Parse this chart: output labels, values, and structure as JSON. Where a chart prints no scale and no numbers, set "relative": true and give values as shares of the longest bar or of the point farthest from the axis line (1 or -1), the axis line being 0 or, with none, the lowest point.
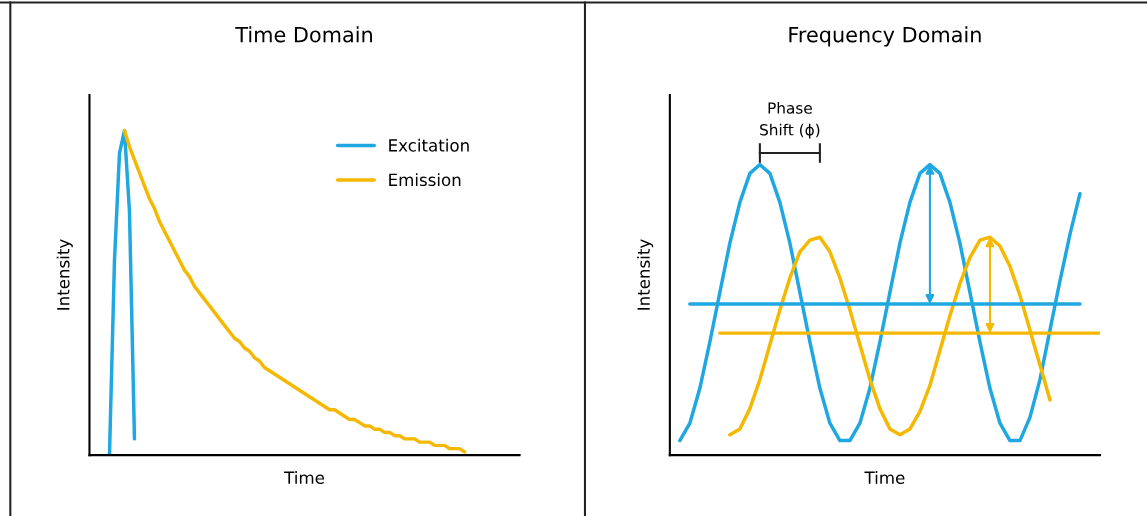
{
  "chart_data": [
    {
      "type": "line",
      "title": "Time Domain",
      "xlabel": "Time",
      "ylabel": "Intensity",
      "relative": true,
      "legend": "top right",
      "categories": [
        null,
        null,
        null,
        null,
        null,
        null,
        null,
        null,
        null,
        null,
        null,
        null,
        null,
        null,
        null,
        null,
        null,
        null,
        null,
        null,
        null,
        null,
        null,
        null,
        null,
        null,
        null,
        null,
        null,
        null,
        null,
        null,
        null,
        null,
        null,
        null,
        null,
        null,
        null,
        null,
        null,
        null,
        null,
        null,
        null,
        null,
        null,
        null,
        null,
        null,
        null,
        null,
        null,
        null,
        null,
        null,
        null,
        null,
        null,
        null,
        null,
        null,
        null,
        null,
        null,
        null,
        null,
        null,
        null,
        null,
        null,
        null,
        null,
        null,
        null,
        null,
        null,
        null,
        null,
        null,
        null,
        null,
        null,
        null,
        null,
        null,
        null
      ],
      "series": [
        {
          "name": "Excitation",
          "color": "#1ea7e1",
          "values": [
            null,
            null,
            null,
            null,
            0,
            0.6,
            0.93,
            1,
            0.75,
            0.05,
            null,
            null,
            null,
            null,
            null,
            null,
            null,
            null,
            null,
            null,
            null,
            null,
            null,
            null,
            null,
            null,
            null,
            null,
            null,
            null,
            null,
            null,
            null,
            null,
            null,
            null,
            null,
            null,
            null,
            null,
            null,
            null,
            null,
            null,
            null,
            null,
            null,
            null,
            null,
            null,
            null,
            null,
            null,
            null,
            null,
            null,
            null,
            null,
            null,
            null,
            null,
            null,
            null,
            null,
            null,
            null,
            null,
            null,
            null,
            null,
            null,
            null,
            null,
            null,
            null,
            null,
            null,
            null,
            null,
            null,
            null,
            null,
            null,
            null,
            null,
            null,
            null
          ]
        },
        {
          "name": "Emission",
          "color": "#f5b800",
          "values": [
            null,
            null,
            null,
            null,
            null,
            null,
            null,
            1.0,
            0.95,
            0.91,
            0.87,
            0.83,
            0.79,
            0.76,
            0.72,
            0.69,
            0.66,
            0.63,
            0.6,
            0.57,
            0.55,
            0.52,
            0.5,
            0.48,
            0.46,
            0.44,
            0.42,
            0.4,
            0.38,
            0.36,
            0.35,
            0.33,
            0.32,
            0.3,
            0.29,
            0.27,
            0.26,
            0.25,
            0.24,
            0.23,
            0.22,
            0.21,
            0.2,
            0.19,
            0.18,
            0.17,
            0.16,
            0.15,
            0.14,
            0.14,
            0.13,
            0.12,
            0.11,
            0.11,
            0.1,
            0.09,
            0.09,
            0.08,
            0.08,
            0.07,
            0.07,
            0.06,
            0.06,
            0.05,
            0.05,
            0.05,
            0.04,
            0.04,
            0.04,
            0.03,
            0.03,
            0.03,
            0.02,
            0.02,
            0.02,
            0.01,
            null,
            null,
            null,
            null,
            null,
            null,
            null,
            null,
            null,
            null,
            null
          ]
        }
      ]
    },
    {
      "type": "line",
      "title": "Frequency Domain",
      "xlabel": "Time",
      "ylabel": "Intensity",
      "relative": true,
      "annotations": [
        "Phase\nShift (ϕ)"
      ],
      "categories": [
        null,
        null,
        null,
        null,
        null,
        null,
        null,
        null,
        null,
        null,
        null,
        null,
        null,
        null,
        null,
        null,
        null,
        null,
        null,
        null,
        null,
        null,
        null,
        null,
        null,
        null,
        null,
        null,
        null,
        null,
        null,
        null,
        null,
        null,
        null,
        null,
        null,
        null,
        null,
        null,
        null,
        null,
        null,
        null
      ],
      "series": [
        {
          "color": "#1ea7e1",
          "values": [
            null,
            0.05,
            0.11,
            0.23,
            0.39,
            0.56,
            0.73,
            0.87,
            0.97,
            1.0,
            0.97,
            0.87,
            0.73,
            0.56,
            0.39,
            0.23,
            0.11,
            0.05,
            0.05,
            0.11,
            0.23,
            0.39,
            0.56,
            0.73,
            0.87,
            0.97,
            1.0,
            0.97,
            0.87,
            0.73,
            0.56,
            0.39,
            0.23,
            0.11,
            0.05,
            0.05,
            0.13,
            0.26,
            0.43,
            0.6,
            0.76,
            0.9,
            null,
            null
          ]
        },
        {
          "color": "#f5b800",
          "values": [
            null,
            null,
            null,
            null,
            null,
            null,
            0.07,
            0.09,
            0.16,
            0.26,
            0.38,
            0.5,
            0.61,
            0.7,
            0.74,
            0.75,
            0.7,
            0.61,
            0.5,
            0.38,
            0.26,
            0.16,
            0.09,
            0.07,
            0.09,
            0.15,
            0.24,
            0.36,
            0.48,
            0.59,
            0.68,
            0.74,
            0.75,
            0.72,
            0.65,
            0.55,
            0.43,
            0.31,
            0.19,
            null,
            null,
            null,
            null,
            null
          ]
        },
        {
          "color": "#1ea7e1",
          "values": [
            null,
            null,
            0.52,
            0.52,
            0.52,
            0.52,
            0.52,
            0.52,
            0.52,
            0.52,
            0.52,
            0.52,
            0.52,
            0.52,
            0.52,
            0.52,
            0.52,
            0.52,
            0.52,
            0.52,
            0.52,
            0.52,
            0.52,
            0.52,
            0.52,
            0.52,
            0.52,
            0.52,
            0.52,
            0.52,
            0.52,
            0.52,
            0.52,
            0.52,
            0.52,
            0.52,
            0.52,
            0.52,
            0.52,
            0.52,
            0.52,
            0.52,
            null,
            null
          ]
        },
        {
          "color": "#f5b800",
          "values": [
            null,
            null,
            null,
            null,
            null,
            0.42,
            0.42,
            0.42,
            0.42,
            0.42,
            0.42,
            0.42,
            0.42,
            0.42,
            0.42,
            0.42,
            0.42,
            0.42,
            0.42,
            0.42,
            0.42,
            0.42,
            0.42,
            0.42,
            0.42,
            0.42,
            0.42,
            0.42,
            0.42,
            0.42,
            0.42,
            0.42,
            0.42,
            0.42,
            0.42,
            0.42,
            0.42,
            0.42,
            0.42,
            0.42,
            0.42,
            0.42,
            0.42,
            0.42
          ]
        }
      ]
    }
  ]
}
